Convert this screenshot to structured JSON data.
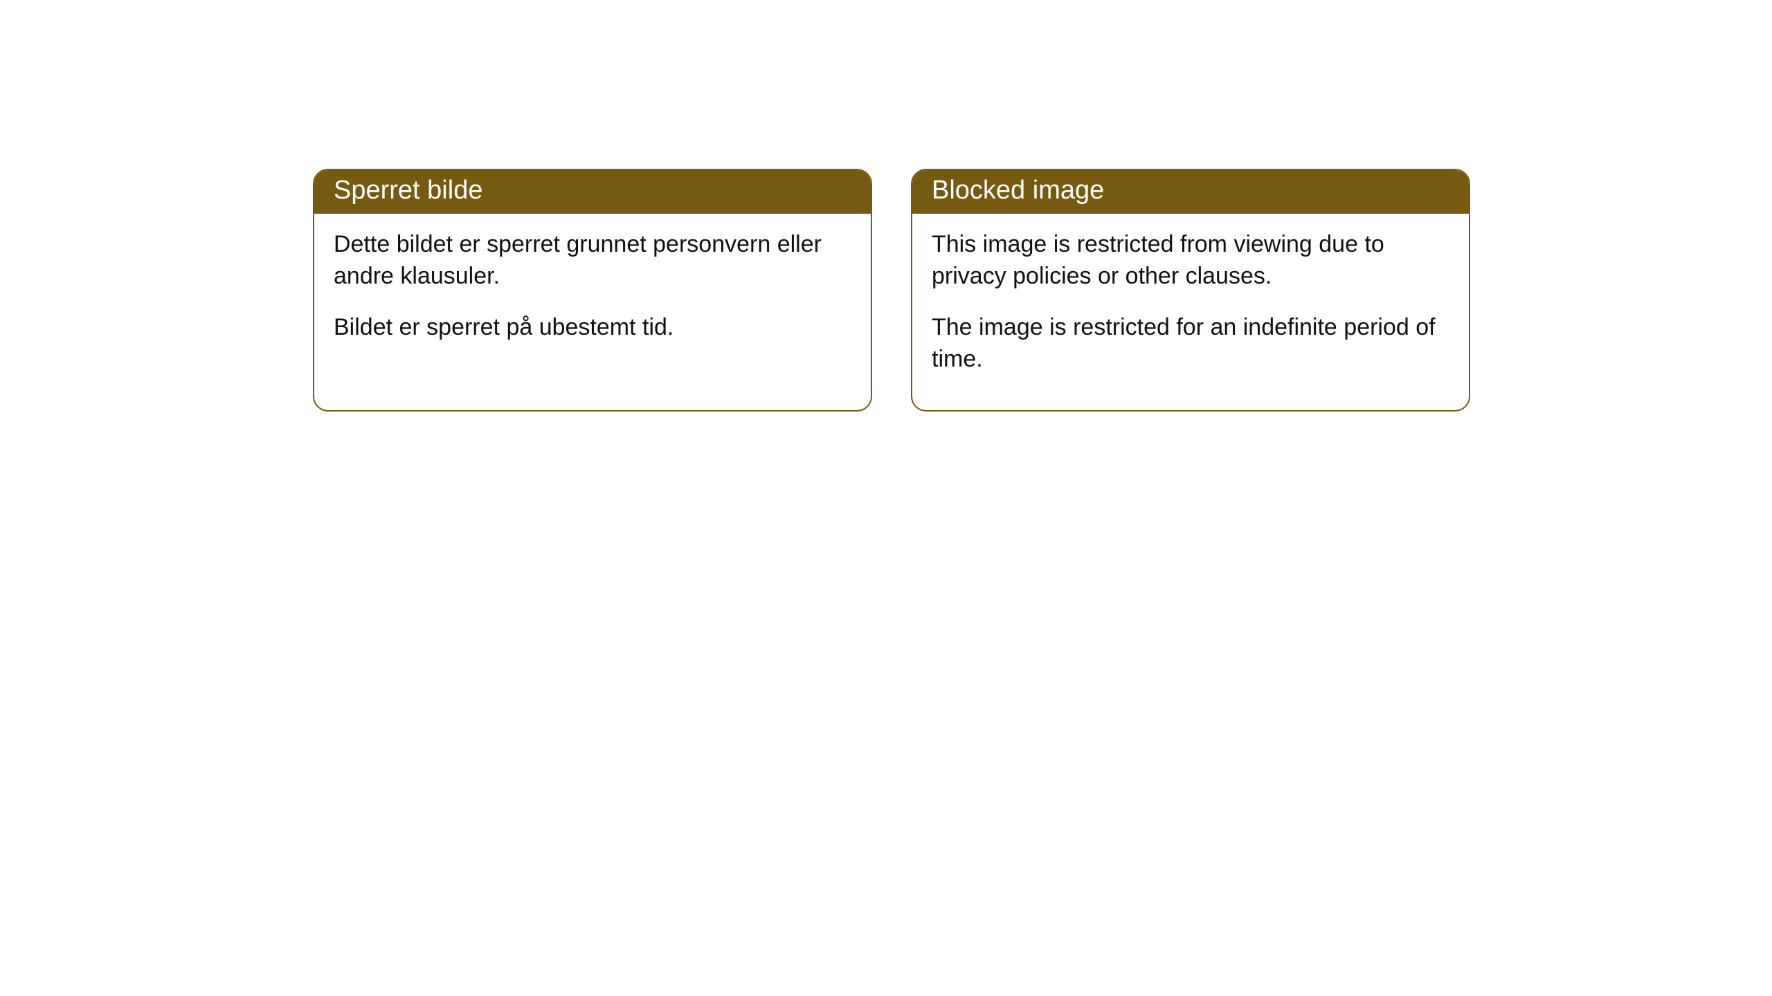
{
  "cards": [
    {
      "title": "Sperret bilde",
      "p1": "Dette bildet er sperret grunnet personvern eller andre klausuler.",
      "p2": "Bildet er sperret på ubestemt tid."
    },
    {
      "title": "Blocked image",
      "p1": "This image is restricted from viewing due to privacy policies or other clauses.",
      "p2": "The image is restricted for an indefinite period of time."
    }
  ],
  "colors": {
    "header_bg": "#775a12",
    "header_text": "#ffffff",
    "border": "#775a12",
    "body_text": "#111111",
    "page_bg": "#ffffff"
  }
}
